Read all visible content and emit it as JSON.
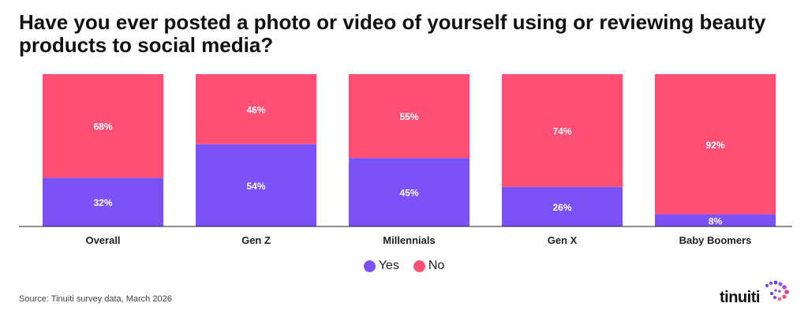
{
  "title": "Have you ever posted a photo or video of yourself using or reviewing beauty products to social media?",
  "colors": {
    "yes": "#7b52f5",
    "no": "#ff4f74"
  },
  "legend": [
    {
      "label": "Yes",
      "color": "#7b52f5"
    },
    {
      "label": "No",
      "color": "#ff4f74"
    }
  ],
  "source": "Source: Tinuiti survey data, March 2026",
  "logo": {
    "text": "tinuiti"
  },
  "chart_data": {
    "type": "bar",
    "stacked": true,
    "categories": [
      "Overall",
      "Gen Z",
      "Millennials",
      "Gen X",
      "Baby Boomers"
    ],
    "series": [
      {
        "name": "Yes",
        "values": [
          32,
          54,
          45,
          26,
          8
        ],
        "labels": [
          "32%",
          "54%",
          "45%",
          "26%",
          "8%"
        ]
      },
      {
        "name": "No",
        "values": [
          68,
          46,
          55,
          74,
          92
        ],
        "labels": [
          "68%",
          "46%",
          "55%",
          "74%",
          "92%"
        ]
      }
    ],
    "ylim": [
      0,
      100
    ],
    "grid": false,
    "legend_position": "bottom"
  }
}
